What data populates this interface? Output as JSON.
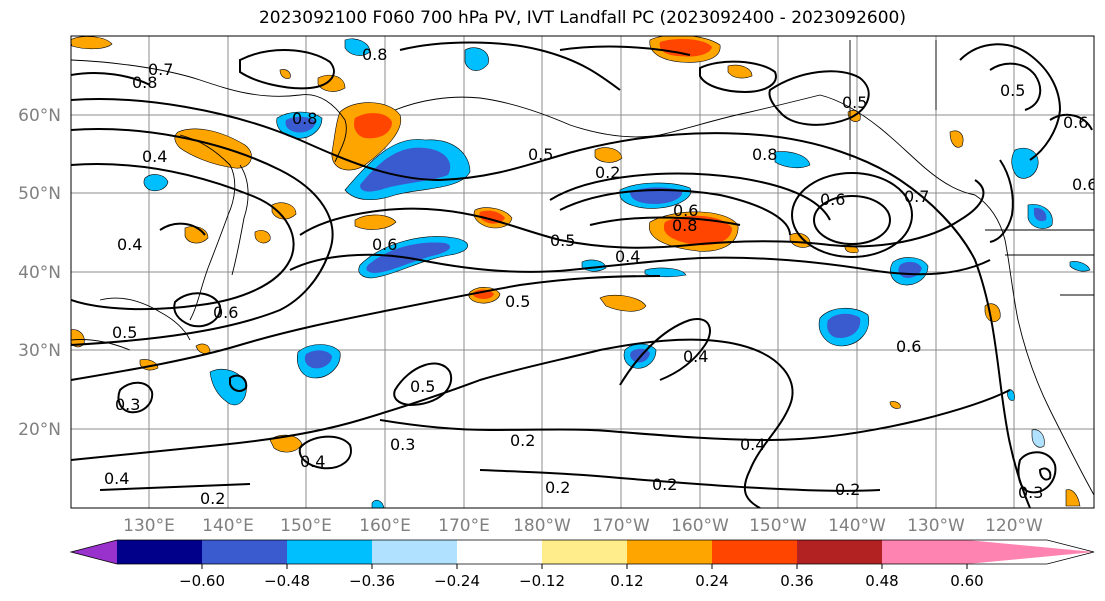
{
  "title": "2023092100 F060 700 hPa PV, IVT Landfall PC (2023092400 - 2023092600)",
  "lat_labels": [
    "60°N",
    "50°N",
    "40°N",
    "30°N",
    "20°N"
  ],
  "lon_labels": [
    "130°E",
    "140°E",
    "150°E",
    "160°E",
    "170°E",
    "180°W",
    "170°W",
    "160°W",
    "150°W",
    "140°W",
    "130°W",
    "120°W"
  ],
  "colorbar": {
    "ticks": [
      "−0.60",
      "−0.48",
      "−0.36",
      "−0.24",
      "−0.12",
      "0.12",
      "0.24",
      "0.36",
      "0.48",
      "0.60"
    ],
    "colors": [
      "#9932cc",
      "#00008b",
      "#3a5bd0",
      "#00bfff",
      "#b0e2ff",
      "#ffffff",
      "#ffec8b",
      "#ffa500",
      "#ff4500",
      "#b22222",
      "#ff83b0"
    ]
  },
  "contour_labels": [
    "0.8",
    "0.7",
    "0.8",
    "0.4",
    "0.5",
    "0.8",
    "0.5",
    "0.2",
    "0.8",
    "0.6",
    "0.7",
    "0.4",
    "0.5",
    "0.4",
    "0.6",
    "0.8",
    "0.6",
    "0.6",
    "0.5",
    "0.5",
    "0.6",
    "0.4",
    "0.5",
    "0.3",
    "0.4",
    "0.3",
    "0.2",
    "0.2",
    "0.4",
    "0.2",
    "0.2",
    "0.3",
    "0.4",
    "0.2",
    "0.5",
    "0.6",
    "0.6"
  ]
}
